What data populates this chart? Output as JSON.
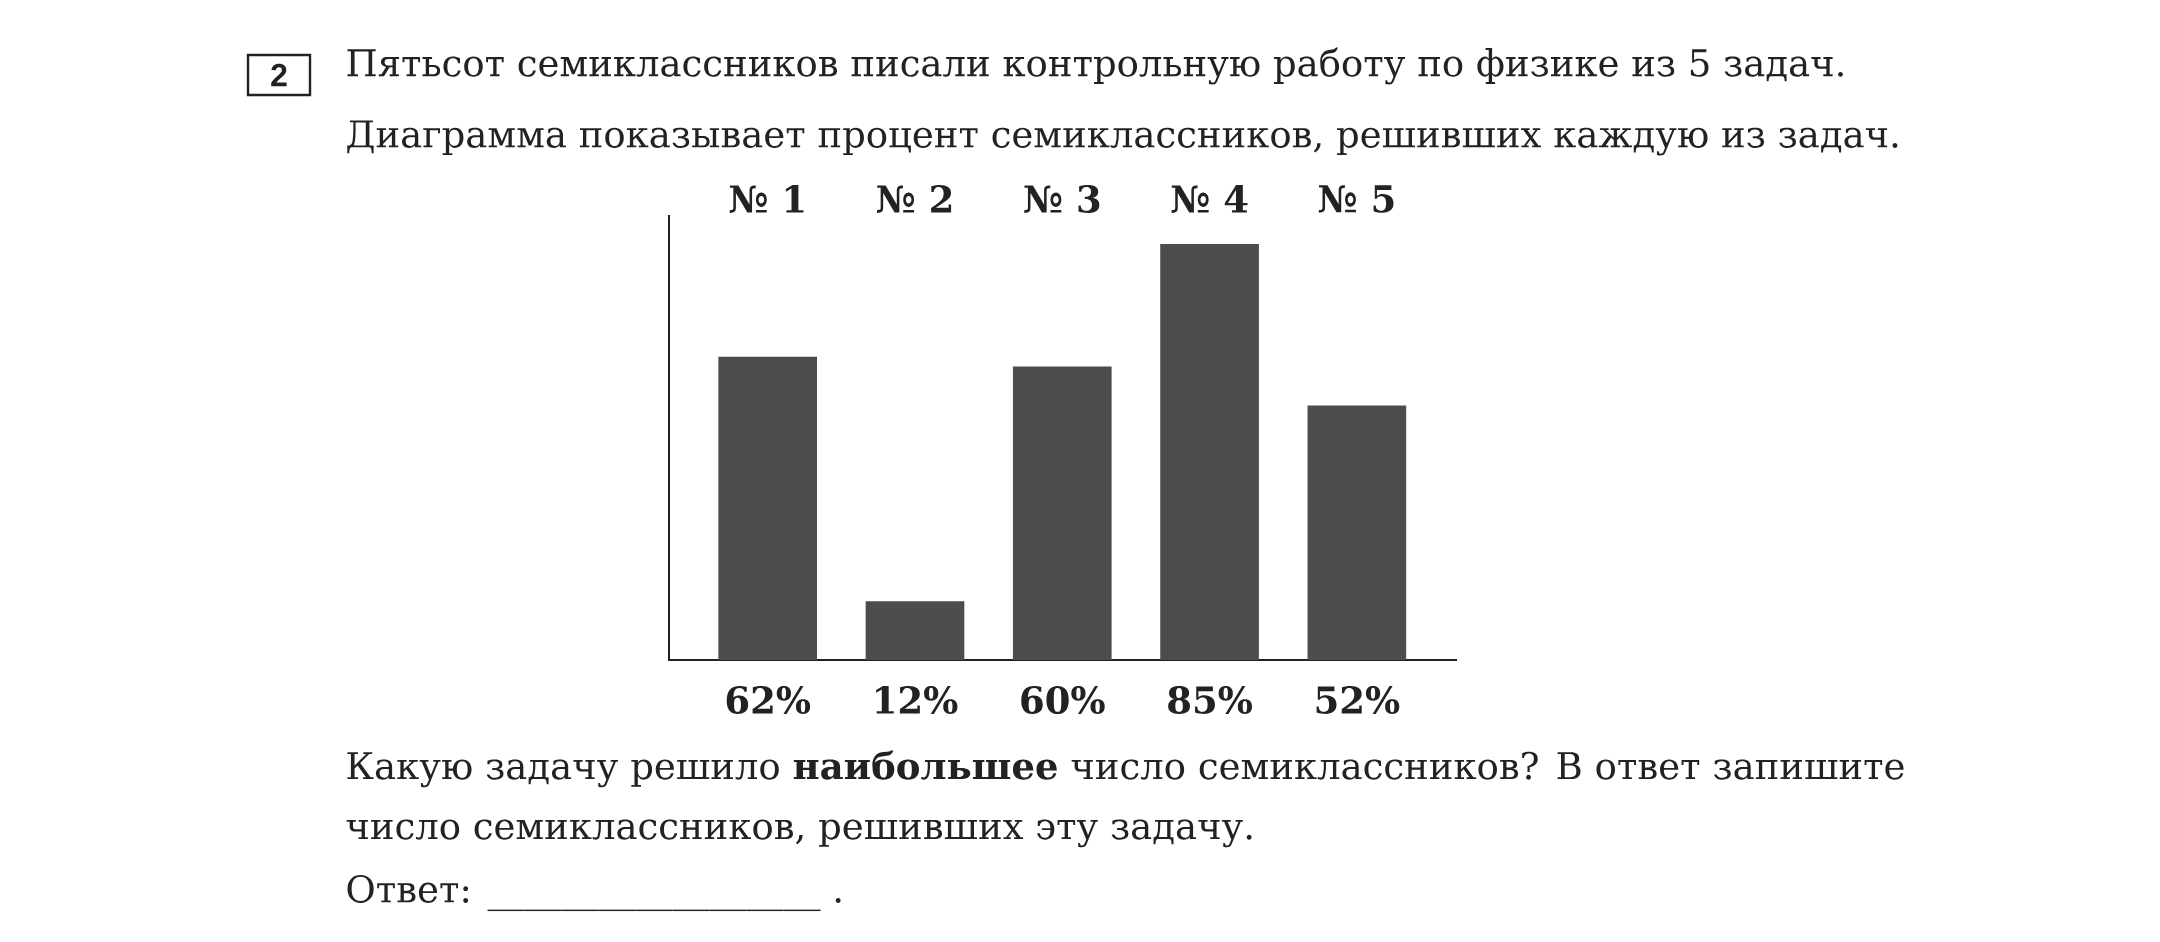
{
  "chart_data": {
    "type": "bar",
    "title": "Пятьсот семиклассников писали контрольную работу по физике из 5 задач.",
    "subtitle": "Диаграмма показывает процент семиклассников, решивших каждую из задач.",
    "categories": [
      "№ 1",
      "№ 2",
      "№ 3",
      "№ 4",
      "№ 5"
    ],
    "values": [
      62,
      12,
      60,
      85,
      52
    ],
    "value_labels": [
      "62%",
      "12%",
      "60%",
      "85%",
      "52%"
    ],
    "color": "#4d4d4d",
    "annotations": [
      "2",
      "Какую задачу решило **наибольшее** число семиклассников? В ответ запишите число семиклассников, решивших эту задачу.",
      "Ответ: __________________ ."
    ]
  }
}
